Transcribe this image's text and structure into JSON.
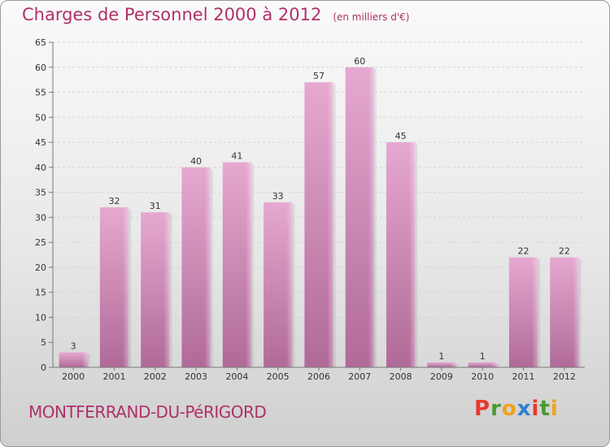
{
  "header": {
    "title": "Charges de Personnel 2000 à 2012",
    "unit": "(en milliers d'€)"
  },
  "footer": {
    "commune": "MONTFERRAND-DU-PéRIGORD",
    "brand": "Proxiti",
    "brand_colors": [
      "#e63a2c",
      "#4a9a2e",
      "#f0a11c",
      "#2f7fd0",
      "#e63a2c",
      "#4a9a2e",
      "#f0a11c"
    ]
  },
  "colors": {
    "accent": "#b0306a",
    "bar_top": "#e6a8d0",
    "bar_bottom": "#b06a98"
  },
  "chart_data": {
    "type": "bar",
    "title": "Charges de Personnel 2000 à 2012",
    "subtitle": "(en milliers d'€)",
    "categories": [
      "2000",
      "2001",
      "2002",
      "2003",
      "2004",
      "2005",
      "2006",
      "2007",
      "2008",
      "2009",
      "2010",
      "2011",
      "2012"
    ],
    "values": [
      3,
      32,
      31,
      40,
      41,
      33,
      57,
      60,
      45,
      1,
      1,
      22,
      22
    ],
    "ylim": [
      0,
      65
    ],
    "yticks": [
      0,
      5,
      10,
      15,
      20,
      25,
      30,
      35,
      40,
      45,
      50,
      55,
      60,
      65
    ],
    "grid": true,
    "xlabel": "",
    "ylabel": ""
  }
}
